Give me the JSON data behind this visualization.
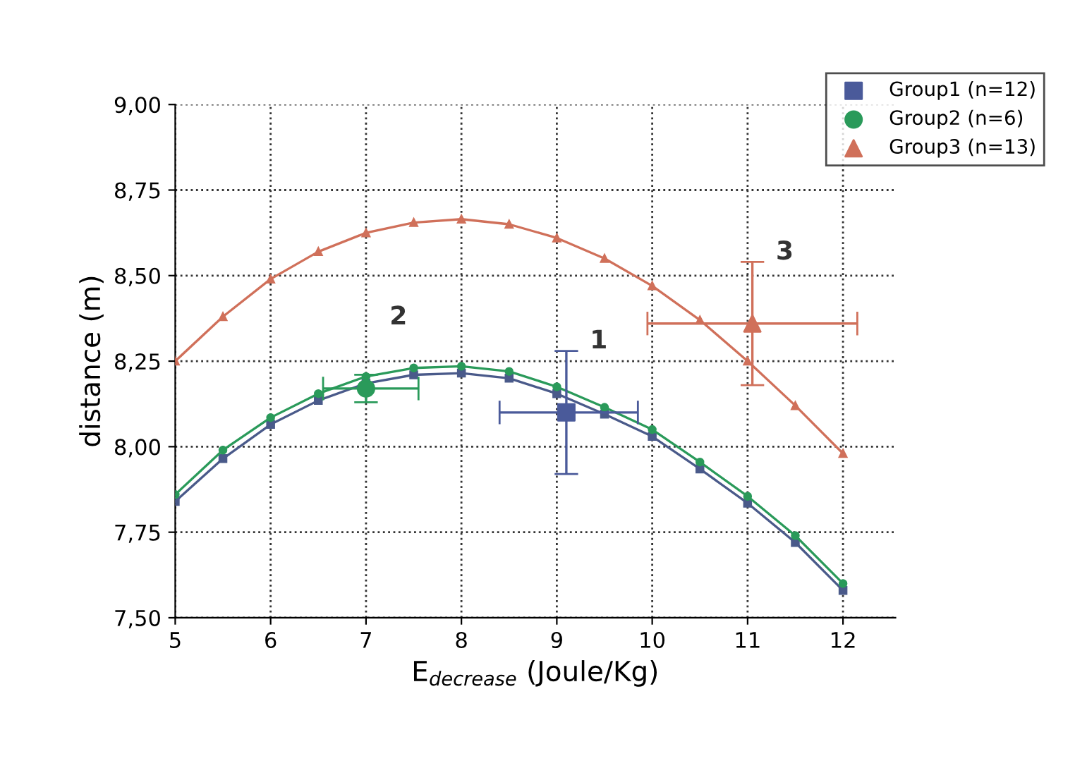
{
  "chart_data": {
    "type": "line",
    "xlabel": "E$_{decrease}$ (Joule/Kg)",
    "ylabel": "distance (m)",
    "xlim": [
      5,
      12.55
    ],
    "ylim": [
      7.5,
      9.0
    ],
    "xticks": [
      5,
      6,
      7,
      8,
      9,
      10,
      11,
      12
    ],
    "yticks": [
      {
        "value": 7.5,
        "label": "7,50"
      },
      {
        "value": 7.75,
        "label": "7,75"
      },
      {
        "value": 8.0,
        "label": "8,00"
      },
      {
        "value": 8.25,
        "label": "8,25"
      },
      {
        "value": 8.5,
        "label": "8,50"
      },
      {
        "value": 8.75,
        "label": "8,75"
      },
      {
        "value": 9.0,
        "label": "9,00"
      }
    ],
    "grid": true,
    "legend": "top right",
    "series": [
      {
        "color": "#4a5a8a",
        "marker": "square",
        "x": [
          5,
          5.5,
          6,
          6.5,
          7,
          7.5,
          8,
          8.5,
          9,
          9.5,
          10,
          10.5,
          11,
          11.5,
          12
        ],
        "values": [
          7.84,
          7.965,
          8.065,
          8.135,
          8.185,
          8.21,
          8.215,
          8.2,
          8.155,
          8.095,
          8.03,
          7.935,
          7.835,
          7.72,
          7.58
        ]
      },
      {
        "color": "#2a9a5a",
        "marker": "circle",
        "x": [
          5,
          5.5,
          6,
          6.5,
          7,
          7.5,
          8,
          8.5,
          9,
          9.5,
          10,
          10.5,
          11,
          11.5,
          12
        ],
        "values": [
          7.86,
          7.99,
          8.085,
          8.155,
          8.205,
          8.23,
          8.235,
          8.22,
          8.175,
          8.115,
          8.05,
          7.955,
          7.855,
          7.74,
          7.6
        ]
      },
      {
        "color": "#d0705a",
        "marker": "triangle",
        "x": [
          5,
          5.5,
          6,
          6.5,
          7,
          7.5,
          8,
          8.5,
          9,
          9.5,
          10,
          10.5,
          11,
          11.5,
          12
        ],
        "values": [
          8.25,
          8.38,
          8.49,
          8.57,
          8.625,
          8.655,
          8.665,
          8.65,
          8.61,
          8.55,
          8.47,
          8.37,
          8.25,
          8.12,
          7.98
        ]
      },
      {
        "type": "scatter",
        "name": "Group1 (n=12)",
        "color": "#4a5a9a",
        "marker": "square",
        "x": [
          9.1
        ],
        "values": [
          8.1
        ],
        "errors": [
          [
            7.92,
            8.28
          ]
        ],
        "xerrors": [
          [
            8.4,
            9.85
          ]
        ]
      },
      {
        "type": "scatter",
        "name": "Group2 (n=6)",
        "color": "#2a9a5a",
        "marker": "circle",
        "x": [
          7.0
        ],
        "values": [
          8.17
        ],
        "errors": [
          [
            8.13,
            8.21
          ]
        ],
        "xerrors": [
          [
            6.55,
            7.55
          ]
        ]
      },
      {
        "type": "scatter",
        "name": "Group3 (n=13)",
        "color": "#d0705a",
        "marker": "triangle",
        "x": [
          11.05
        ],
        "values": [
          8.36
        ],
        "errors": [
          [
            8.18,
            8.54
          ]
        ],
        "xerrors": [
          [
            9.95,
            12.15
          ]
        ]
      }
    ],
    "annotations": [
      "1",
      "2",
      "3"
    ]
  }
}
